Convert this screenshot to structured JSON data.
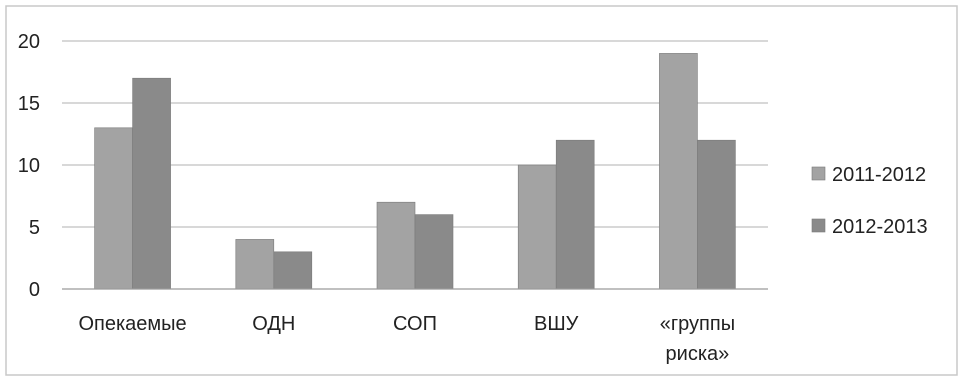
{
  "chart_data": {
    "type": "bar",
    "title": "",
    "xlabel": "",
    "ylabel": "",
    "categories": [
      "Опекаемые",
      "ОДН",
      "СОП",
      "ВШУ",
      "«группы риска»"
    ],
    "category_lines": [
      [
        "Опекаемые"
      ],
      [
        "ОДН"
      ],
      [
        "СОП"
      ],
      [
        "ВШУ"
      ],
      [
        "«группы",
        "риска»"
      ]
    ],
    "series": [
      {
        "name": "2011-2012",
        "values": [
          13,
          4,
          7,
          10,
          19
        ],
        "color": "#a3a3a3"
      },
      {
        "name": "2012-2013",
        "values": [
          17,
          3,
          6,
          12,
          12
        ],
        "color": "#8a8a8a"
      }
    ],
    "ylim": [
      0,
      20
    ],
    "yticks": [
      "0",
      "5",
      "10",
      "15",
      "20"
    ],
    "grid": true,
    "legend": "right"
  }
}
